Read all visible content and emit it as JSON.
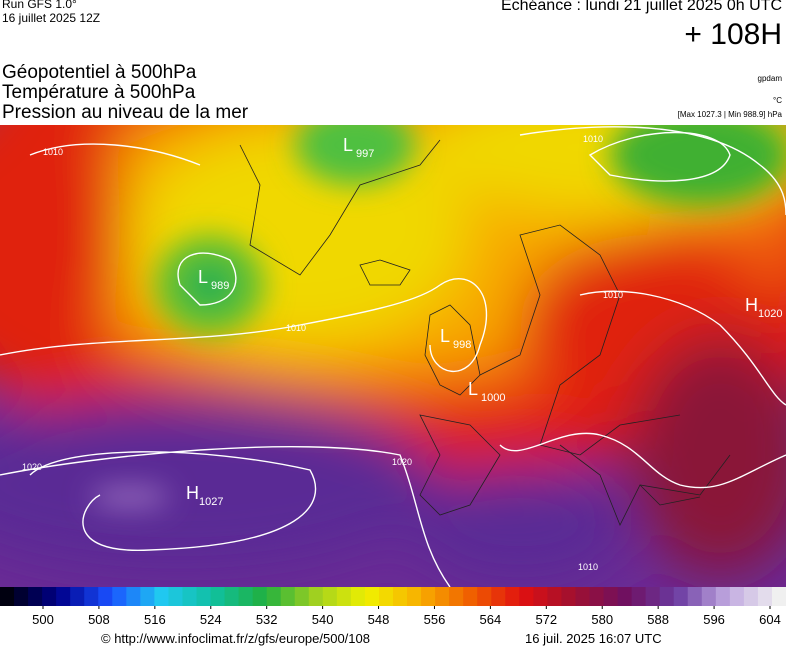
{
  "header": {
    "run": "Run GFS 1.0°",
    "date": "16 juillet 2025 12Z",
    "echeance": "Echéance : lundi 21 juillet 2025 0h UTC",
    "lead": "+ 108H"
  },
  "layers": [
    "Géopotentiel à 500hPa",
    "Température à 500hPa",
    "Pression au niveau de la mer"
  ],
  "units": [
    "gpdam",
    "°C",
    "[Max 1027.3 | Min 988.9] hPa"
  ],
  "map": {
    "centers": [
      {
        "type": "L",
        "value": "997"
      },
      {
        "type": "L",
        "value": "989"
      },
      {
        "type": "L",
        "value": "998"
      },
      {
        "type": "L",
        "value": "1000"
      },
      {
        "type": "H",
        "value": "1020"
      },
      {
        "type": "H",
        "value": "1027"
      }
    ],
    "isobar_labels": [
      "1010",
      "1010",
      "1020",
      "1020",
      "1010",
      "1010",
      "1010"
    ]
  },
  "colorbar": {
    "ticks": [
      500,
      508,
      516,
      524,
      532,
      540,
      548,
      556,
      564,
      572,
      580,
      588,
      596,
      604
    ],
    "colors": [
      "#000010",
      "#00008a",
      "#1a50ff",
      "#20c8f0",
      "#10c0a0",
      "#20b040",
      "#a0d020",
      "#f0f000",
      "#f8b000",
      "#f06000",
      "#e01010",
      "#a01030",
      "#701060",
      "#6a3aa0",
      "#c0a8e0",
      "#f0f0f0"
    ]
  },
  "footer": {
    "url": "© http://www.infoclimat.fr/z/gfs/europe/500/108",
    "timestamp": "16 juil. 2025 16:07 UTC"
  }
}
